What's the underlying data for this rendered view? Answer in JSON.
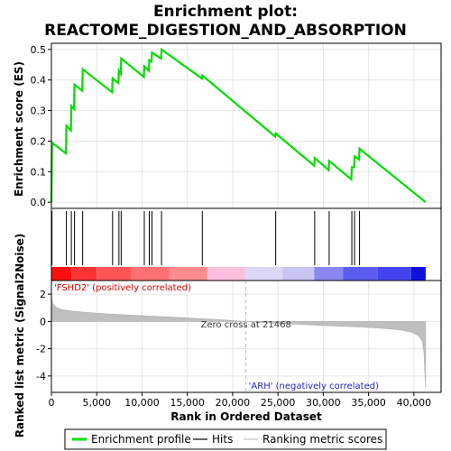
{
  "chart_data": {
    "type": "line",
    "title_line1": "Enrichment plot:",
    "title_line2": "REACTOME_DIGESTION_AND_ABSORPTION",
    "es_panel": {
      "ylabel": "Enrichment score (ES)",
      "ylim": [
        -0.02,
        0.52
      ],
      "yticks": [
        0.0,
        0.1,
        0.2,
        0.3,
        0.4,
        0.5
      ],
      "ytick_labels": [
        "0.0",
        "0.1",
        "0.2",
        "0.3",
        "0.4",
        "0.5"
      ],
      "line_color": "#00dd00",
      "profile": [
        [
          0,
          0.0
        ],
        [
          60,
          0.195
        ],
        [
          1600,
          0.16
        ],
        [
          1650,
          0.25
        ],
        [
          2150,
          0.235
        ],
        [
          2200,
          0.315
        ],
        [
          2500,
          0.305
        ],
        [
          2550,
          0.385
        ],
        [
          3400,
          0.365
        ],
        [
          3450,
          0.435
        ],
        [
          6700,
          0.36
        ],
        [
          6750,
          0.405
        ],
        [
          7400,
          0.39
        ],
        [
          7450,
          0.43
        ],
        [
          7650,
          0.42
        ],
        [
          7700,
          0.47
        ],
        [
          10200,
          0.41
        ],
        [
          10250,
          0.445
        ],
        [
          10750,
          0.43
        ],
        [
          10800,
          0.465
        ],
        [
          11050,
          0.46
        ],
        [
          11100,
          0.49
        ],
        [
          12100,
          0.47
        ],
        [
          12150,
          0.5
        ],
        [
          16600,
          0.405
        ],
        [
          16650,
          0.415
        ],
        [
          24700,
          0.215
        ],
        [
          24750,
          0.225
        ],
        [
          29000,
          0.12
        ],
        [
          29050,
          0.145
        ],
        [
          30600,
          0.105
        ],
        [
          30650,
          0.135
        ],
        [
          33100,
          0.075
        ],
        [
          33150,
          0.115
        ],
        [
          33400,
          0.115
        ],
        [
          33450,
          0.15
        ],
        [
          33950,
          0.14
        ],
        [
          34000,
          0.175
        ],
        [
          41300,
          0.0
        ]
      ],
      "hits": [
        60,
        1650,
        2200,
        2550,
        3450,
        6750,
        7450,
        7700,
        10250,
        10800,
        11100,
        12150,
        16650,
        24750,
        29050,
        30650,
        33150,
        33450,
        34000
      ]
    },
    "metric_panel": {
      "ylabel": "Ranked list metric (Signal2Noise)",
      "ylim": [
        -5.2,
        3.0
      ],
      "yticks": [
        2,
        0,
        -2,
        -4
      ],
      "ytick_labels": [
        "2",
        "0",
        "-2",
        "-4"
      ],
      "zero_cross": 21468,
      "zero_cross_label": "Zero cross at 21468",
      "pos_label": "'FSHD2' (positively correlated)",
      "neg_label": "'ARH' (negatively correlated)",
      "curve": [
        [
          0,
          1.9
        ],
        [
          150,
          1.3
        ],
        [
          500,
          1.05
        ],
        [
          1000,
          0.9
        ],
        [
          2000,
          0.78
        ],
        [
          3500,
          0.68
        ],
        [
          6000,
          0.56
        ],
        [
          9000,
          0.46
        ],
        [
          12000,
          0.36
        ],
        [
          15000,
          0.26
        ],
        [
          18000,
          0.15
        ],
        [
          21468,
          0.0
        ],
        [
          24000,
          -0.1
        ],
        [
          27000,
          -0.2
        ],
        [
          30000,
          -0.3
        ],
        [
          33000,
          -0.38
        ],
        [
          36000,
          -0.48
        ],
        [
          38500,
          -0.62
        ],
        [
          39800,
          -0.8
        ],
        [
          40500,
          -1.05
        ],
        [
          40900,
          -1.4
        ],
        [
          41100,
          -2.2
        ],
        [
          41200,
          -3.6
        ],
        [
          41300,
          -4.9
        ]
      ]
    },
    "xlabel": "Rank in Ordered Dataset",
    "xlim": [
      0,
      43000
    ],
    "xticks": [
      0,
      5000,
      10000,
      15000,
      20000,
      25000,
      30000,
      35000,
      40000
    ],
    "xtick_labels": [
      "0",
      "5,000",
      "10,000",
      "15,000",
      "20,000",
      "25,000",
      "30,000",
      "35,000",
      "40,000"
    ],
    "color_bar": [
      {
        "end": 2200,
        "color": "#ff1010"
      },
      {
        "end": 5000,
        "color": "#ff3333"
      },
      {
        "end": 8800,
        "color": "#ff5555"
      },
      {
        "end": 13000,
        "color": "#ff7070"
      },
      {
        "end": 17200,
        "color": "#ff8c8c"
      },
      {
        "end": 21468,
        "color": "#ffc0e0"
      },
      {
        "end": 25500,
        "color": "#ddd8f8"
      },
      {
        "end": 29000,
        "color": "#c8c4f4"
      },
      {
        "end": 32200,
        "color": "#8888f0"
      },
      {
        "end": 36000,
        "color": "#5c5cee"
      },
      {
        "end": 39700,
        "color": "#4444ee"
      },
      {
        "end": 41300,
        "color": "#1010dd"
      }
    ],
    "legend": [
      {
        "label": "Enrichment profile",
        "color": "#00dd00",
        "kind": "thick"
      },
      {
        "label": "Hits",
        "color": "#000000",
        "kind": "thin"
      },
      {
        "label": "Ranking metric scores",
        "color": "#c0c0c0",
        "kind": "thin"
      }
    ]
  }
}
